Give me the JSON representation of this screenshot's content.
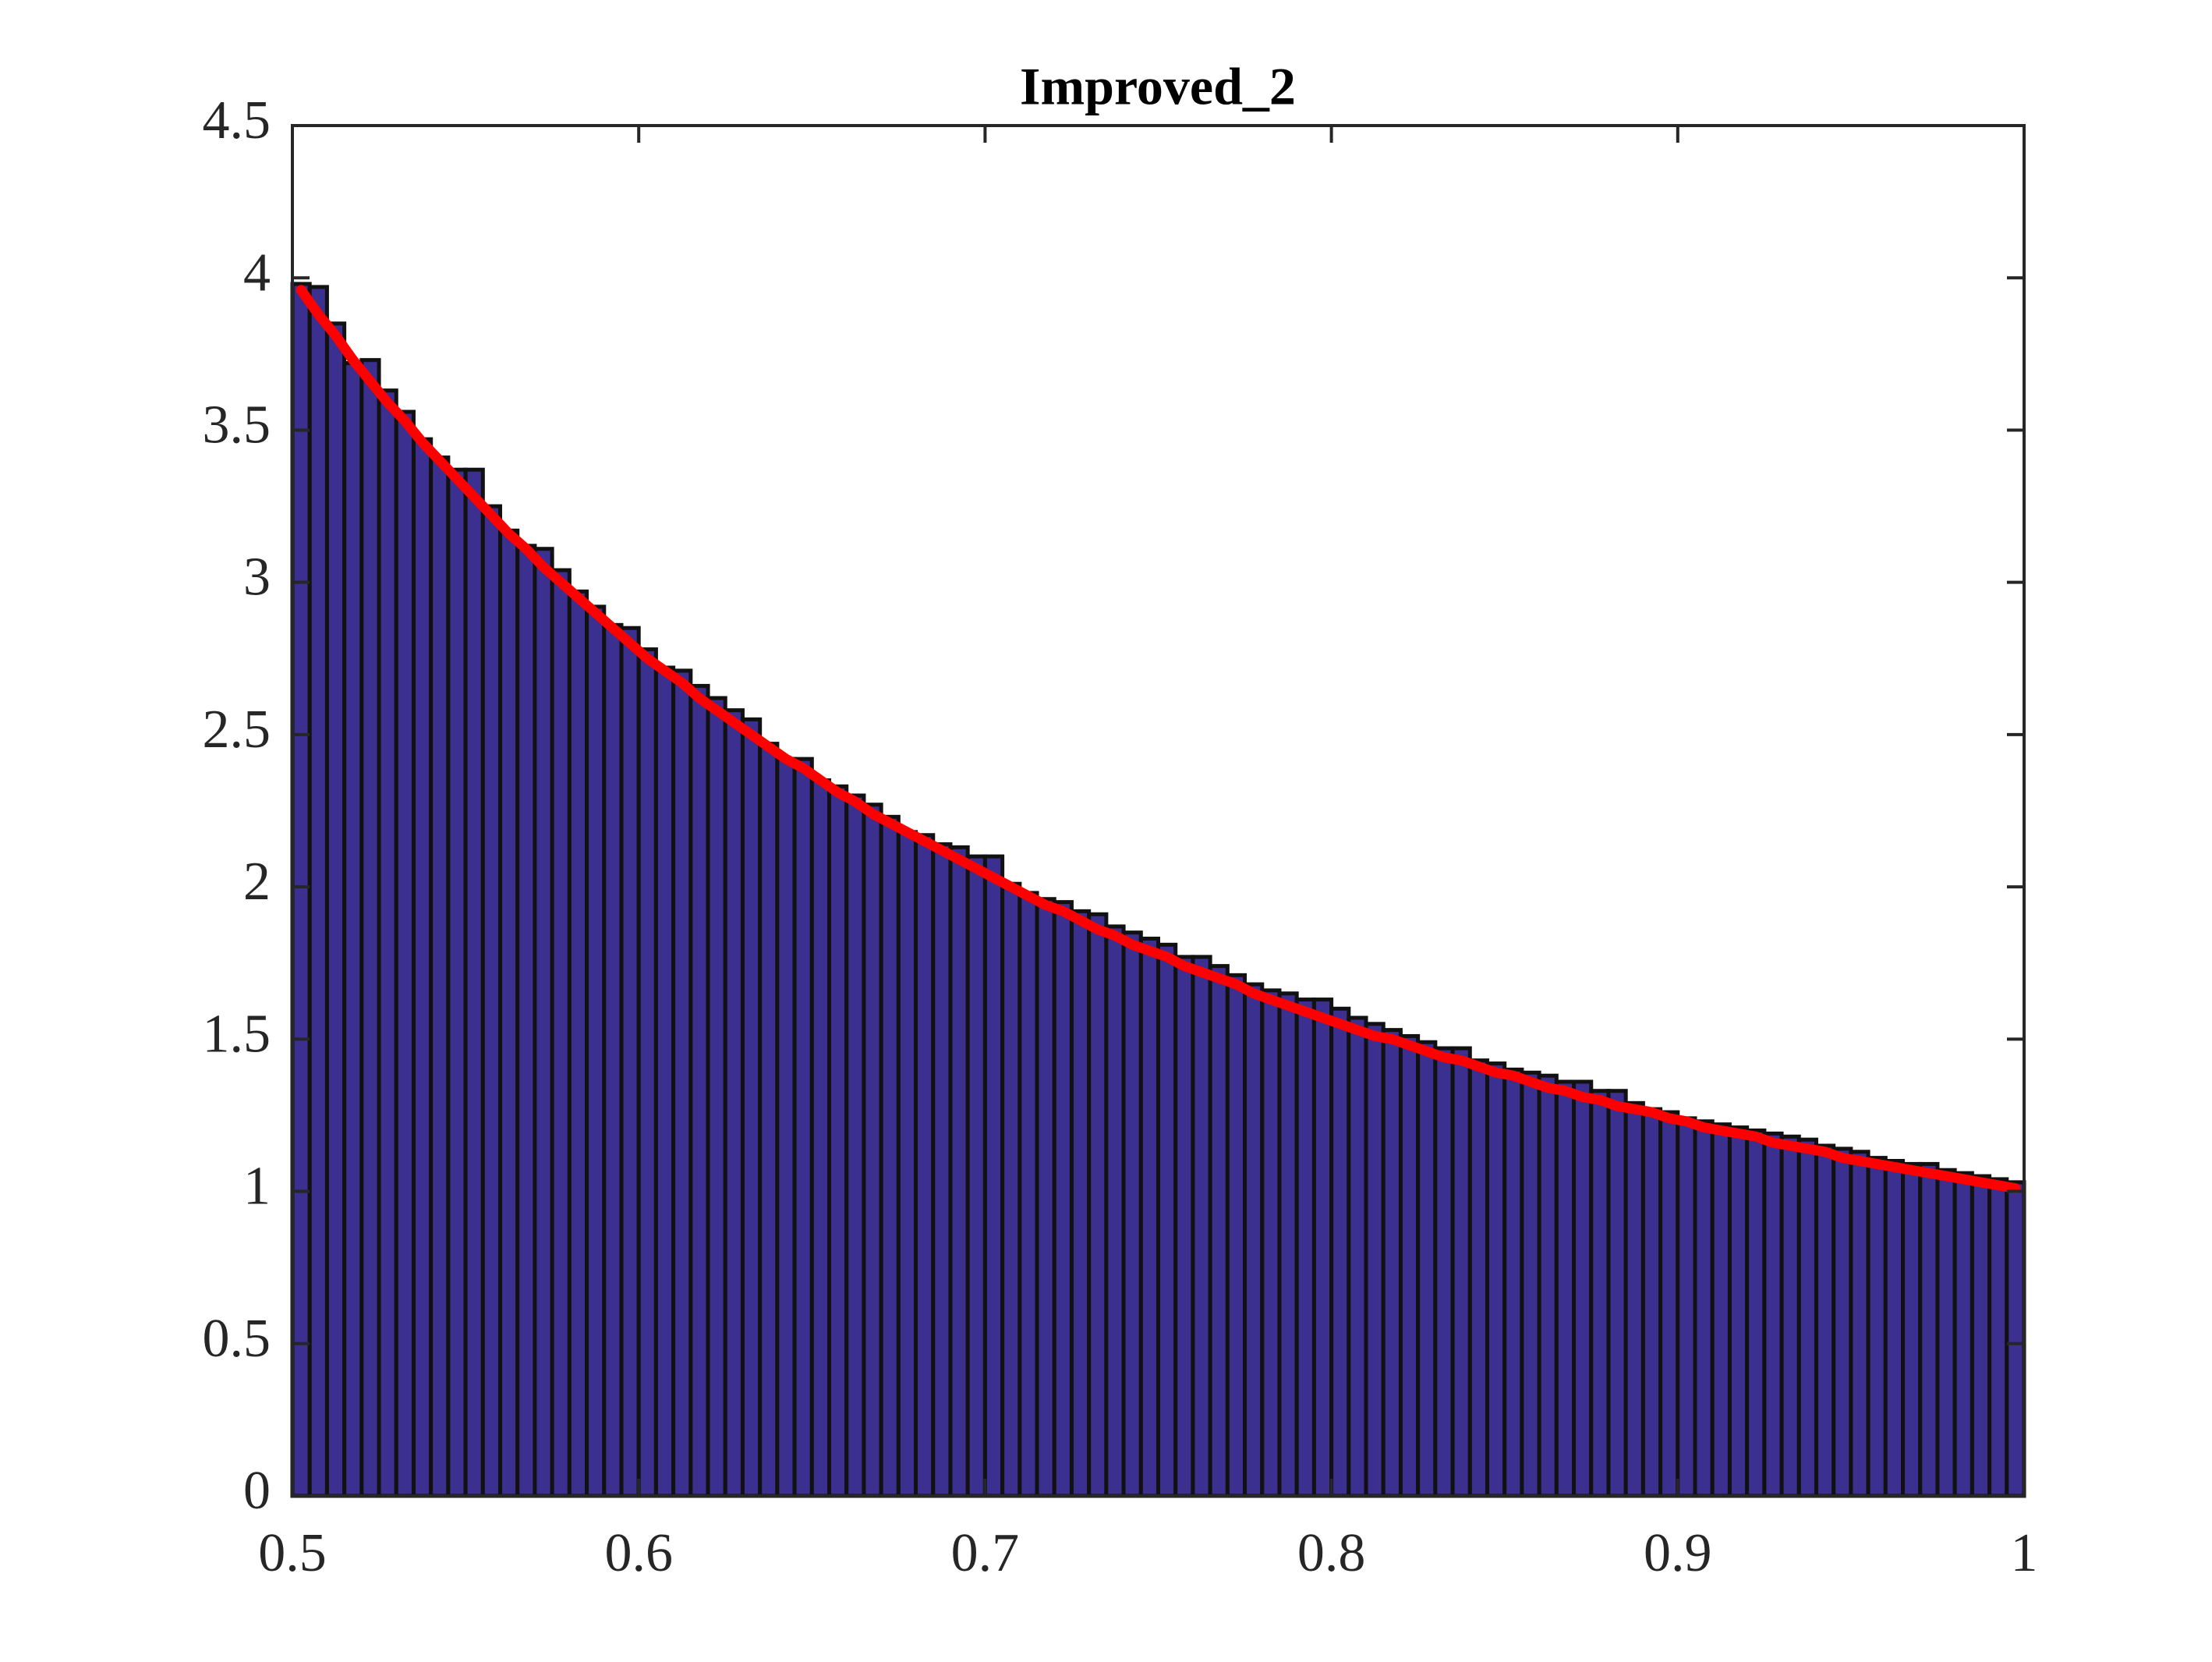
{
  "chart_data": {
    "type": "histogram",
    "title": "Improved_2",
    "bins": [
      0.5,
      0.505,
      0.51,
      0.515,
      0.52,
      0.525,
      0.53,
      0.535,
      0.54,
      0.545,
      0.55,
      0.555,
      0.56,
      0.565,
      0.57,
      0.575,
      0.58,
      0.585,
      0.59,
      0.595,
      0.6,
      0.605,
      0.61,
      0.615,
      0.62,
      0.625,
      0.63,
      0.635,
      0.64,
      0.645,
      0.65,
      0.655,
      0.66,
      0.665,
      0.67,
      0.675,
      0.68,
      0.685,
      0.69,
      0.695,
      0.7,
      0.705,
      0.71,
      0.715,
      0.72,
      0.725,
      0.73,
      0.735,
      0.74,
      0.745,
      0.75,
      0.755,
      0.76,
      0.765,
      0.77,
      0.775,
      0.78,
      0.785,
      0.79,
      0.795,
      0.8,
      0.805,
      0.81,
      0.815,
      0.82,
      0.825,
      0.83,
      0.835,
      0.84,
      0.845,
      0.85,
      0.855,
      0.86,
      0.865,
      0.87,
      0.875,
      0.88,
      0.885,
      0.89,
      0.895,
      0.9,
      0.905,
      0.91,
      0.915,
      0.92,
      0.925,
      0.93,
      0.935,
      0.94,
      0.945,
      0.95,
      0.955,
      0.96,
      0.965,
      0.97,
      0.975,
      0.98,
      0.985,
      0.99,
      0.995,
      1
    ],
    "counts": [
      3.98,
      3.97,
      3.85,
      3.72,
      3.73,
      3.63,
      3.56,
      3.47,
      3.41,
      3.37,
      3.37,
      3.25,
      3.17,
      3.12,
      3.11,
      3.04,
      2.97,
      2.92,
      2.86,
      2.85,
      2.78,
      2.72,
      2.71,
      2.66,
      2.62,
      2.58,
      2.55,
      2.47,
      2.42,
      2.42,
      2.35,
      2.33,
      2.3,
      2.27,
      2.23,
      2.18,
      2.17,
      2.14,
      2.13,
      2.1,
      2.1,
      2.01,
      1.98,
      1.96,
      1.95,
      1.92,
      1.91,
      1.87,
      1.85,
      1.83,
      1.81,
      1.77,
      1.77,
      1.74,
      1.71,
      1.68,
      1.66,
      1.65,
      1.63,
      1.63,
      1.6,
      1.57,
      1.55,
      1.53,
      1.51,
      1.49,
      1.47,
      1.47,
      1.43,
      1.42,
      1.4,
      1.39,
      1.38,
      1.36,
      1.36,
      1.33,
      1.33,
      1.29,
      1.27,
      1.26,
      1.24,
      1.23,
      1.22,
      1.21,
      1.2,
      1.19,
      1.18,
      1.17,
      1.15,
      1.14,
      1.13,
      1.11,
      1.1,
      1.09,
      1.09,
      1.07,
      1.06,
      1.05,
      1.04,
      1.03
    ],
    "color": "#3b2f8f",
    "edgecolor": "#111111",
    "overlay": {
      "type": "line",
      "color": "#ff0000",
      "x": [
        0.5025,
        0.5075,
        0.5125,
        0.5175,
        0.5225,
        0.5275,
        0.5325,
        0.5375,
        0.5425,
        0.5475,
        0.5525,
        0.5575,
        0.5625,
        0.5675,
        0.5725,
        0.5775,
        0.5825,
        0.5875,
        0.5925,
        0.5975,
        0.6025,
        0.6075,
        0.6125,
        0.6175,
        0.6225,
        0.6275,
        0.6325,
        0.6375,
        0.6425,
        0.6475,
        0.6525,
        0.6575,
        0.6625,
        0.6675,
        0.6725,
        0.6775,
        0.6825,
        0.6875,
        0.6925,
        0.6975,
        0.7025,
        0.7075,
        0.7125,
        0.7175,
        0.7225,
        0.7275,
        0.7325,
        0.7375,
        0.7425,
        0.7475,
        0.7525,
        0.7575,
        0.7625,
        0.7675,
        0.7725,
        0.7775,
        0.7825,
        0.7875,
        0.7925,
        0.7975,
        0.8025,
        0.8075,
        0.8125,
        0.8175,
        0.8225,
        0.8275,
        0.8325,
        0.8375,
        0.8425,
        0.8475,
        0.8525,
        0.8575,
        0.8625,
        0.8675,
        0.8725,
        0.8775,
        0.8825,
        0.8875,
        0.8925,
        0.8975,
        0.9025,
        0.9075,
        0.9125,
        0.9175,
        0.9225,
        0.9275,
        0.9325,
        0.9375,
        0.9425,
        0.9475,
        0.9525,
        0.9575,
        0.9625,
        0.9675,
        0.9725,
        0.9775,
        0.9825,
        0.9875,
        0.9925,
        0.9975
      ],
      "values": [
        3.96,
        3.88,
        3.81,
        3.73,
        3.66,
        3.59,
        3.53,
        3.46,
        3.4,
        3.34,
        3.28,
        3.22,
        3.16,
        3.11,
        3.05,
        3.0,
        2.95,
        2.9,
        2.85,
        2.8,
        2.75,
        2.71,
        2.67,
        2.62,
        2.58,
        2.54,
        2.5,
        2.46,
        2.42,
        2.39,
        2.35,
        2.31,
        2.28,
        2.24,
        2.21,
        2.18,
        2.15,
        2.12,
        2.09,
        2.06,
        2.03,
        2.0,
        1.97,
        1.94,
        1.92,
        1.89,
        1.86,
        1.84,
        1.81,
        1.79,
        1.77,
        1.74,
        1.72,
        1.7,
        1.68,
        1.65,
        1.63,
        1.61,
        1.59,
        1.57,
        1.55,
        1.53,
        1.51,
        1.5,
        1.48,
        1.46,
        1.44,
        1.43,
        1.41,
        1.39,
        1.38,
        1.36,
        1.34,
        1.33,
        1.31,
        1.3,
        1.28,
        1.27,
        1.26,
        1.24,
        1.23,
        1.21,
        1.2,
        1.19,
        1.18,
        1.16,
        1.15,
        1.14,
        1.13,
        1.11,
        1.1,
        1.09,
        1.08,
        1.07,
        1.06,
        1.05,
        1.04,
        1.03,
        1.02,
        1.01
      ]
    },
    "xlim": [
      0.5,
      1
    ],
    "xticks": [
      0.5,
      0.6,
      0.7,
      0.8,
      0.9,
      1
    ],
    "ylim": [
      0,
      4.5
    ],
    "yticks": [
      0,
      0.5,
      1,
      1.5,
      2,
      2.5,
      3,
      3.5,
      4,
      4.5
    ]
  }
}
